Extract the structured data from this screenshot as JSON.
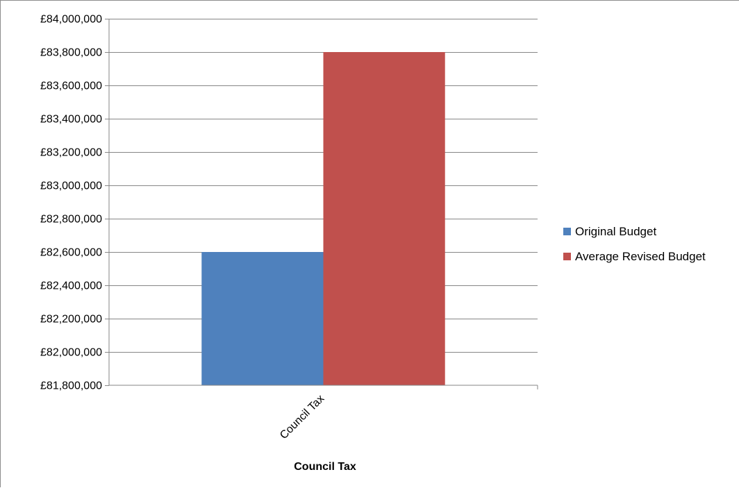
{
  "chart_data": {
    "type": "bar",
    "categories": [
      "Council Tax"
    ],
    "series": [
      {
        "name": "Original Budget",
        "values": [
          82600000
        ],
        "color": "#4f81bd"
      },
      {
        "name": "Average Revised Budget",
        "values": [
          83800000
        ],
        "color": "#c0504d"
      }
    ],
    "title": "",
    "xlabel": "Council Tax",
    "ylabel": "",
    "ylim": [
      81800000,
      84000000
    ],
    "ytick_step": 200000,
    "ytick_labels": [
      "£81,800,000",
      "£82,000,000",
      "£82,200,000",
      "£82,400,000",
      "£82,600,000",
      "£82,800,000",
      "£83,000,000",
      "£83,200,000",
      "£83,400,000",
      "£83,600,000",
      "£83,800,000",
      "£84,000,000"
    ],
    "grid": true,
    "legend_position": "right",
    "colors": {
      "grid": "#868686",
      "axis": "#868686"
    }
  }
}
